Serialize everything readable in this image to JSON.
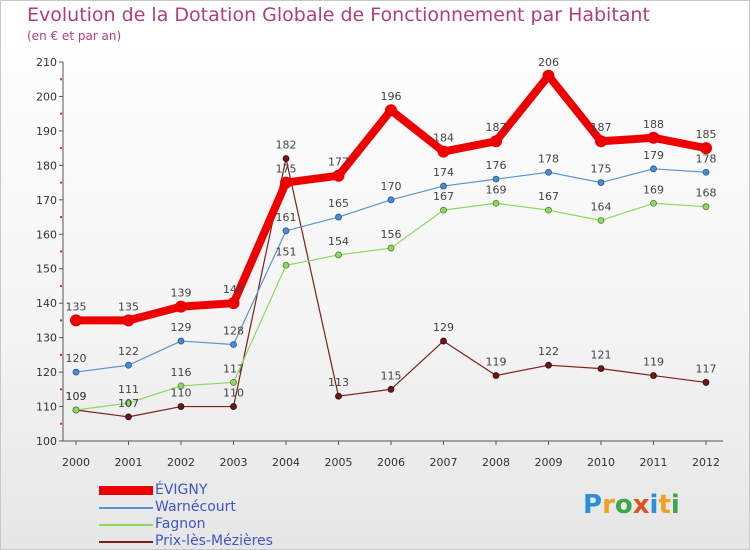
{
  "title": "Evolution de la Dotation Globale de Fonctionnement par Habitant",
  "subtitle": "(en € et par an)",
  "logo": {
    "text": "Proxiti",
    "letters": [
      {
        "ch": "P",
        "color": "#2a8fd8"
      },
      {
        "ch": "r",
        "color": "#f0a020"
      },
      {
        "ch": "o",
        "color": "#3aa84a"
      },
      {
        "ch": "x",
        "color": "#e05020"
      },
      {
        "ch": "i",
        "color": "#2a8fd8"
      },
      {
        "ch": "t",
        "color": "#f0a020"
      },
      {
        "ch": "i",
        "color": "#3aa84a"
      }
    ]
  },
  "chart_data": {
    "type": "line",
    "title": "Evolution de la Dotation Globale de Fonctionnement par Habitant",
    "subtitle": "(en € et par an)",
    "xlabel": "",
    "ylabel": "",
    "x": [
      "2000",
      "2001",
      "2002",
      "2003",
      "2004",
      "2005",
      "2006",
      "2007",
      "2008",
      "2009",
      "2010",
      "2011",
      "2012"
    ],
    "ylim": [
      100,
      210
    ],
    "yticks": [
      100,
      110,
      120,
      130,
      140,
      150,
      160,
      170,
      180,
      190,
      200,
      210
    ],
    "grid": false,
    "legend_position": "bottom-left",
    "series": [
      {
        "name": "ÉVIGNY",
        "color": "#ee0000",
        "values": [
          135,
          135,
          139,
          140,
          175,
          177,
          196,
          184,
          187,
          206,
          187,
          188,
          185
        ]
      },
      {
        "name": "Warnécourt",
        "color": "#5b95cf",
        "values": [
          120,
          122,
          129,
          128,
          161,
          165,
          170,
          174,
          176,
          178,
          175,
          179,
          178
        ]
      },
      {
        "name": "Fagnon",
        "color": "#8fd860",
        "values": [
          109,
          111,
          116,
          117,
          151,
          154,
          156,
          167,
          169,
          167,
          164,
          169,
          168
        ]
      },
      {
        "name": "Prix-lès-Mézières",
        "color": "#7a2020",
        "values": [
          109,
          107,
          110,
          110,
          182,
          113,
          115,
          129,
          119,
          122,
          121,
          119,
          117
        ]
      }
    ]
  }
}
